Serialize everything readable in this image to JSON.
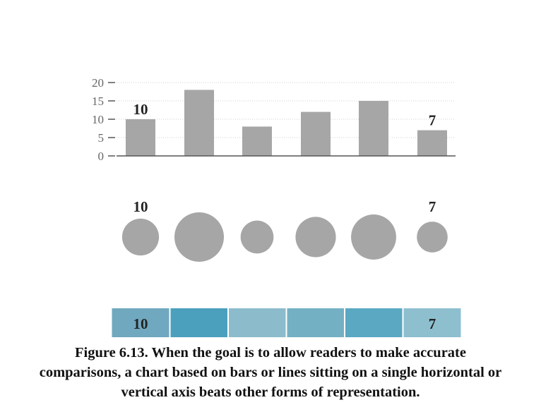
{
  "chart_data": [
    {
      "type": "bar",
      "categories": [
        "",
        "",
        "",
        "",
        "",
        ""
      ],
      "values": [
        10,
        18,
        8,
        12,
        15,
        7
      ],
      "data_labels": [
        "10",
        "",
        "",
        "",
        "",
        "7"
      ],
      "y_ticks": [
        "0",
        "5",
        "10",
        "15",
        "20"
      ],
      "ylim": [
        0,
        20
      ],
      "grid": true,
      "colors": {
        "bar": "#a6a6a6",
        "grid": "#cfcfcf",
        "axis": "#555555"
      }
    },
    {
      "type": "bubble",
      "values": [
        10,
        18,
        8,
        12,
        15,
        7
      ],
      "data_labels": [
        "10",
        "",
        "",
        "",
        "",
        "7"
      ],
      "colors": {
        "bubble": "#a6a6a6"
      }
    },
    {
      "type": "heatmap",
      "values": [
        10,
        18,
        8,
        12,
        15,
        7
      ],
      "data_labels": [
        "10",
        "",
        "",
        "",
        "",
        "7"
      ],
      "colors": [
        "#70a8bf",
        "#4aa0bd",
        "#8cbccc",
        "#74b0c4",
        "#5aa8c2",
        "#8dbfcf"
      ]
    }
  ],
  "caption": {
    "line1": "Figure 6.13. When the goal is to allow readers to make accurate",
    "line2": "comparisons, a chart based on bars or lines sitting on a single horizontal or",
    "line3": "vertical axis beats other forms of representation."
  }
}
